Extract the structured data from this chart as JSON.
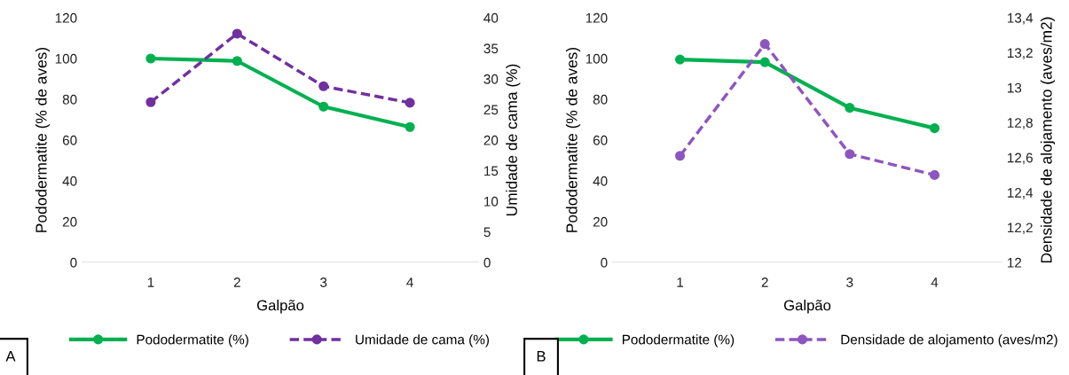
{
  "chart_data": [
    {
      "type": "line",
      "categories": [
        "1",
        "2",
        "3",
        "4"
      ],
      "xlabel": "Galpão",
      "ylabel": "Pododermatite (% de aves)",
      "y2label": "Umidade de cama (%)",
      "ylim": [
        0,
        120
      ],
      "yticks": [
        0,
        20,
        40,
        60,
        80,
        100,
        120
      ],
      "y2lim": [
        0,
        40
      ],
      "y2ticks": [
        0,
        5,
        10,
        15,
        20,
        25,
        30,
        35,
        40
      ],
      "marker": "circle",
      "legend": "bottom",
      "grid": false,
      "annotations": [
        "A"
      ],
      "series": [
        {
          "name": "Pododermatite (%)",
          "color": "#00b050",
          "values": [
            100,
            98.8,
            76.4,
            66.4
          ],
          "line_style": "solid"
        },
        {
          "name": "Umidade de cama (%)",
          "color": "#7030a0",
          "values": [
            26.2,
            37.4,
            28.8,
            26.1
          ],
          "line_style": "dashed",
          "axis": "y2"
        }
      ]
    },
    {
      "type": "line",
      "categories": [
        "1",
        "2",
        "3",
        "4"
      ],
      "xlabel": "Galpão",
      "ylabel": "Pododermatite (% de aves)",
      "y2label": "Densidade de alojamento (aves/m2)",
      "ylim": [
        0,
        120
      ],
      "yticks": [
        0,
        20,
        40,
        60,
        80,
        100,
        120
      ],
      "y2lim": [
        12,
        13.4
      ],
      "y2ticks": [
        {
          "value": 12,
          "label": "12"
        },
        {
          "value": 12.2,
          "label": "12,2"
        },
        {
          "value": 12.4,
          "label": "12,4"
        },
        {
          "value": 12.6,
          "label": "12,6"
        },
        {
          "value": 12.8,
          "label": "12,8"
        },
        {
          "value": 13,
          "label": "13"
        },
        {
          "value": 13.2,
          "label": "13,2"
        },
        {
          "value": 13.4,
          "label": "13,4"
        }
      ],
      "marker": "circle",
      "legend": "bottom",
      "grid": false,
      "annotations": [
        "B"
      ],
      "series": [
        {
          "name": "Pododermatite (%)",
          "color": "#00b050",
          "values": [
            99.5,
            98.2,
            75.8,
            65.8
          ],
          "line_style": "solid"
        },
        {
          "name": "Densidade de alojamento (aves/m2)",
          "color": "#8e55c0",
          "values": [
            12.61,
            13.25,
            12.62,
            12.5
          ],
          "line_style": "dashed",
          "axis": "y2"
        }
      ]
    }
  ]
}
